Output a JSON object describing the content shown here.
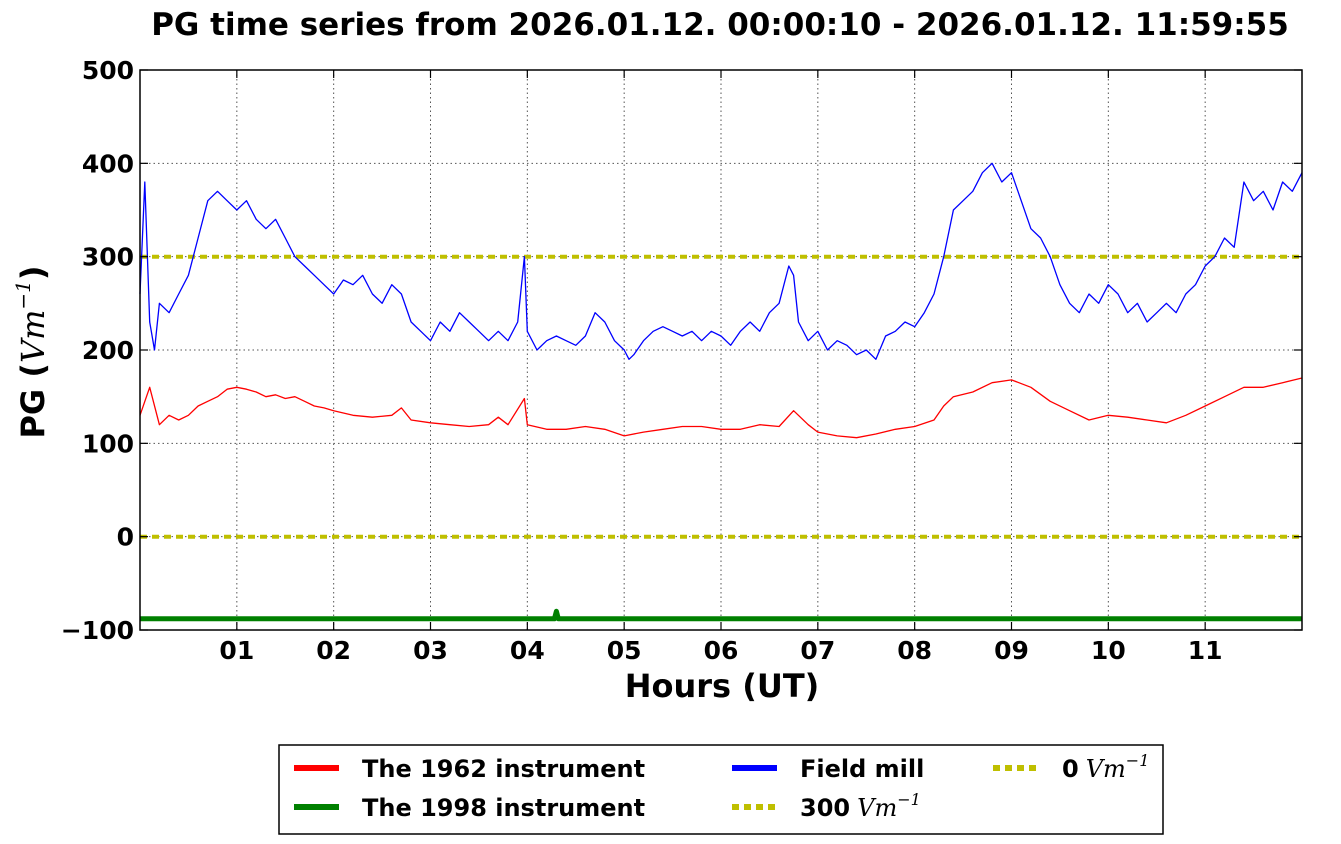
{
  "chart_data": {
    "type": "line",
    "title": "PG time series from 2026.01.12. 00:00:10 - 2026.01.12. 11:59:55",
    "xlabel": "Hours (UT)",
    "ylabel_prefix": "PG (",
    "ylabel_unit": "Vm",
    "ylabel_exp": "−1",
    "ylabel_suffix": ")",
    "xlim": [
      0,
      12
    ],
    "ylim": [
      -100,
      500
    ],
    "x_ticks": [
      {
        "value": 1,
        "label": "01"
      },
      {
        "value": 2,
        "label": "02"
      },
      {
        "value": 3,
        "label": "03"
      },
      {
        "value": 4,
        "label": "04"
      },
      {
        "value": 5,
        "label": "05"
      },
      {
        "value": 6,
        "label": "06"
      },
      {
        "value": 7,
        "label": "07"
      },
      {
        "value": 8,
        "label": "08"
      },
      {
        "value": 9,
        "label": "09"
      },
      {
        "value": 10,
        "label": "10"
      },
      {
        "value": 11,
        "label": "11"
      }
    ],
    "y_ticks": [
      {
        "value": -100,
        "label": "−100"
      },
      {
        "value": 0,
        "label": "0"
      },
      {
        "value": 100,
        "label": "100"
      },
      {
        "value": 200,
        "label": "200"
      },
      {
        "value": 300,
        "label": "300"
      },
      {
        "value": 400,
        "label": "400"
      },
      {
        "value": 500,
        "label": "500"
      }
    ],
    "grid": true,
    "legend_position": "bottom-center",
    "series": [
      {
        "name": "Field mill",
        "color": "#0000ff",
        "x": [
          0,
          0.05,
          0.1,
          0.15,
          0.2,
          0.3,
          0.4,
          0.5,
          0.6,
          0.7,
          0.8,
          0.9,
          1.0,
          1.1,
          1.2,
          1.3,
          1.4,
          1.5,
          1.6,
          1.7,
          1.8,
          1.9,
          2.0,
          2.1,
          2.2,
          2.3,
          2.4,
          2.5,
          2.6,
          2.7,
          2.8,
          2.9,
          3.0,
          3.1,
          3.2,
          3.3,
          3.4,
          3.5,
          3.6,
          3.7,
          3.8,
          3.9,
          3.97,
          4.0,
          4.1,
          4.2,
          4.3,
          4.4,
          4.5,
          4.6,
          4.7,
          4.8,
          4.9,
          5.0,
          5.05,
          5.1,
          5.2,
          5.3,
          5.4,
          5.5,
          5.6,
          5.7,
          5.8,
          5.9,
          6.0,
          6.1,
          6.2,
          6.3,
          6.4,
          6.5,
          6.6,
          6.7,
          6.75,
          6.8,
          6.9,
          7.0,
          7.1,
          7.2,
          7.3,
          7.4,
          7.5,
          7.6,
          7.7,
          7.8,
          7.9,
          8.0,
          8.1,
          8.2,
          8.3,
          8.4,
          8.5,
          8.6,
          8.7,
          8.8,
          8.9,
          9.0,
          9.1,
          9.2,
          9.3,
          9.4,
          9.5,
          9.6,
          9.7,
          9.8,
          9.9,
          10.0,
          10.1,
          10.2,
          10.3,
          10.4,
          10.5,
          10.6,
          10.7,
          10.8,
          10.9,
          11.0,
          11.1,
          11.2,
          11.3,
          11.4,
          11.5,
          11.6,
          11.7,
          11.8,
          11.9,
          12.0
        ],
        "values": [
          260,
          380,
          230,
          200,
          250,
          240,
          260,
          280,
          320,
          360,
          370,
          360,
          350,
          360,
          340,
          330,
          340,
          320,
          300,
          290,
          280,
          270,
          260,
          275,
          270,
          280,
          260,
          250,
          270,
          260,
          230,
          220,
          210,
          230,
          220,
          240,
          230,
          220,
          210,
          220,
          210,
          230,
          300,
          220,
          200,
          210,
          215,
          210,
          205,
          215,
          240,
          230,
          210,
          200,
          190,
          195,
          210,
          220,
          225,
          220,
          215,
          220,
          210,
          220,
          215,
          205,
          220,
          230,
          220,
          240,
          250,
          290,
          280,
          230,
          210,
          220,
          200,
          210,
          205,
          195,
          200,
          190,
          215,
          220,
          230,
          225,
          240,
          260,
          300,
          350,
          360,
          370,
          390,
          400,
          380,
          390,
          360,
          330,
          320,
          300,
          270,
          250,
          240,
          260,
          250,
          270,
          260,
          240,
          250,
          230,
          240,
          250,
          240,
          260,
          270,
          290,
          300,
          320,
          310,
          380,
          360,
          370,
          350,
          380,
          370,
          390
        ]
      },
      {
        "name": "The 1962 instrument",
        "color": "#ff0000",
        "x": [
          0,
          0.1,
          0.2,
          0.3,
          0.4,
          0.5,
          0.6,
          0.7,
          0.8,
          0.9,
          1.0,
          1.1,
          1.2,
          1.3,
          1.4,
          1.5,
          1.6,
          1.7,
          1.8,
          1.9,
          2.0,
          2.2,
          2.4,
          2.6,
          2.7,
          2.8,
          3.0,
          3.2,
          3.4,
          3.6,
          3.7,
          3.8,
          3.97,
          4.0,
          4.2,
          4.4,
          4.6,
          4.8,
          5.0,
          5.2,
          5.4,
          5.6,
          5.8,
          6.0,
          6.2,
          6.4,
          6.6,
          6.75,
          6.9,
          7.0,
          7.2,
          7.4,
          7.6,
          7.8,
          8.0,
          8.2,
          8.3,
          8.4,
          8.6,
          8.8,
          9.0,
          9.2,
          9.4,
          9.6,
          9.8,
          10.0,
          10.2,
          10.4,
          10.6,
          10.8,
          11.0,
          11.2,
          11.4,
          11.6,
          11.8,
          12.0
        ],
        "values": [
          130,
          160,
          120,
          130,
          125,
          130,
          140,
          145,
          150,
          158,
          160,
          158,
          155,
          150,
          152,
          148,
          150,
          145,
          140,
          138,
          135,
          130,
          128,
          130,
          138,
          125,
          122,
          120,
          118,
          120,
          128,
          120,
          148,
          120,
          115,
          115,
          118,
          115,
          108,
          112,
          115,
          118,
          118,
          115,
          115,
          120,
          118,
          135,
          120,
          112,
          108,
          106,
          110,
          115,
          118,
          125,
          140,
          150,
          155,
          165,
          168,
          160,
          145,
          135,
          125,
          130,
          128,
          125,
          122,
          130,
          140,
          150,
          160,
          160,
          165,
          170
        ]
      },
      {
        "name": "The 1998 instrument",
        "color": "#008000",
        "x": [
          0,
          4.28,
          4.3,
          4.32,
          12
        ],
        "values": [
          -88,
          -88,
          -80,
          -88,
          -88
        ]
      },
      {
        "name": "300",
        "legend_unit": "Vm",
        "legend_exp": "−1",
        "color": "#bfbf00",
        "dashed": true,
        "x": [
          0,
          12
        ],
        "values": [
          300,
          300
        ]
      },
      {
        "name": "0",
        "legend_unit": "Vm",
        "legend_exp": "−1",
        "color": "#bfbf00",
        "dashed": true,
        "x": [
          0,
          12
        ],
        "values": [
          0,
          0
        ]
      }
    ]
  }
}
